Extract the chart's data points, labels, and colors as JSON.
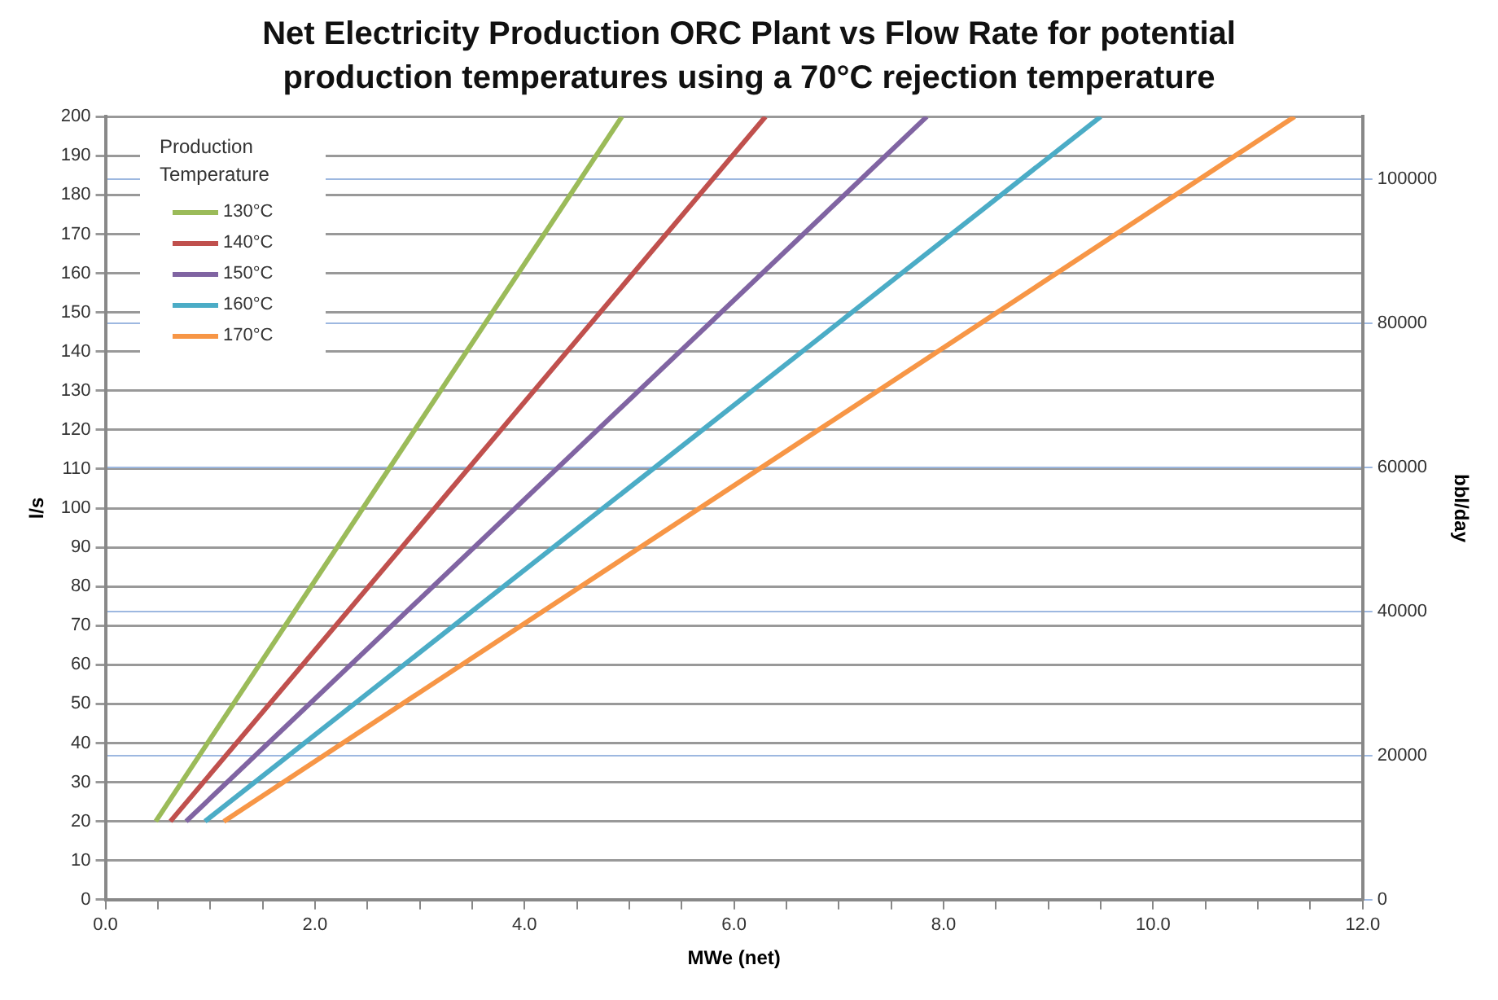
{
  "chart_data": {
    "type": "line",
    "title": "Net Electricity Production ORC Plant vs Flow Rate for potential production temperatures using a 70°C rejection temperature",
    "xlabel": "MWe (net)",
    "ylabel": "l/s",
    "y2label": "bbl/day",
    "legend_title": "Production Temperature",
    "legend": "top left",
    "grid": "y",
    "marker": "none",
    "line_style": "solid",
    "xlim": [
      0,
      12
    ],
    "xticks": [
      {
        "value": 0,
        "label": "0.0"
      },
      {
        "value": 0.5,
        "label": null
      },
      {
        "value": 1,
        "label": null
      },
      {
        "value": 1.5,
        "label": null
      },
      {
        "value": 2,
        "label": "2.0"
      },
      {
        "value": 2.5,
        "label": null
      },
      {
        "value": 3,
        "label": null
      },
      {
        "value": 3.5,
        "label": null
      },
      {
        "value": 4,
        "label": "4.0"
      },
      {
        "value": 4.5,
        "label": null
      },
      {
        "value": 5,
        "label": null
      },
      {
        "value": 5.5,
        "label": null
      },
      {
        "value": 6,
        "label": "6.0"
      },
      {
        "value": 6.5,
        "label": null
      },
      {
        "value": 7,
        "label": null
      },
      {
        "value": 7.5,
        "label": null
      },
      {
        "value": 8,
        "label": "8.0"
      },
      {
        "value": 8.5,
        "label": null
      },
      {
        "value": 9,
        "label": null
      },
      {
        "value": 9.5,
        "label": null
      },
      {
        "value": 10,
        "label": "10.0"
      },
      {
        "value": 10.5,
        "label": null
      },
      {
        "value": 11,
        "label": null
      },
      {
        "value": 11.5,
        "label": null
      },
      {
        "value": 12,
        "label": "12.0"
      }
    ],
    "ylim": [
      0,
      200
    ],
    "yticks": [
      0,
      10,
      20,
      30,
      40,
      50,
      60,
      70,
      80,
      90,
      100,
      110,
      120,
      130,
      140,
      150,
      160,
      170,
      180,
      190,
      200
    ],
    "y2lim": [
      0,
      108680
    ],
    "y2ticks": [
      0,
      20000,
      40000,
      60000,
      80000,
      100000
    ],
    "series": [
      {
        "name": "130°C",
        "color": "#9bbb59",
        "x": [
          0.48,
          4.93
        ],
        "values": [
          20,
          200
        ]
      },
      {
        "name": "140°C",
        "color": "#c0504d",
        "x": [
          0.62,
          6.3
        ],
        "values": [
          20,
          200
        ]
      },
      {
        "name": "150°C",
        "color": "#8064a2",
        "x": [
          0.77,
          7.84
        ],
        "values": [
          20,
          200
        ]
      },
      {
        "name": "160°C",
        "color": "#4bacc6",
        "x": [
          0.95,
          9.5
        ],
        "values": [
          20,
          200
        ]
      },
      {
        "name": "170°C",
        "color": "#f79646",
        "x": [
          1.13,
          11.35
        ],
        "values": [
          20,
          200
        ]
      }
    ]
  }
}
